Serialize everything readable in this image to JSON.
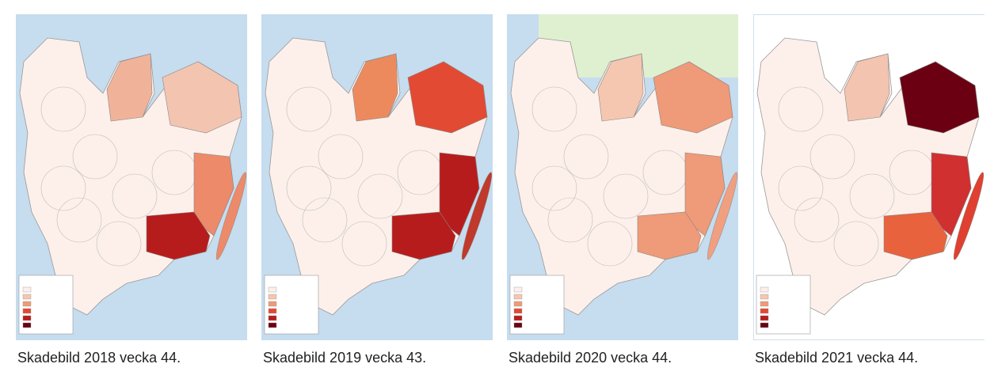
{
  "panels": [
    {
      "caption": "Skadebild 2018 vecka 44."
    },
    {
      "caption": "Skadebild 2019 vecka 43."
    },
    {
      "caption": "Skadebild 2020 vecka 44."
    },
    {
      "caption": "Skadebild 2021 vecka 44."
    }
  ]
}
